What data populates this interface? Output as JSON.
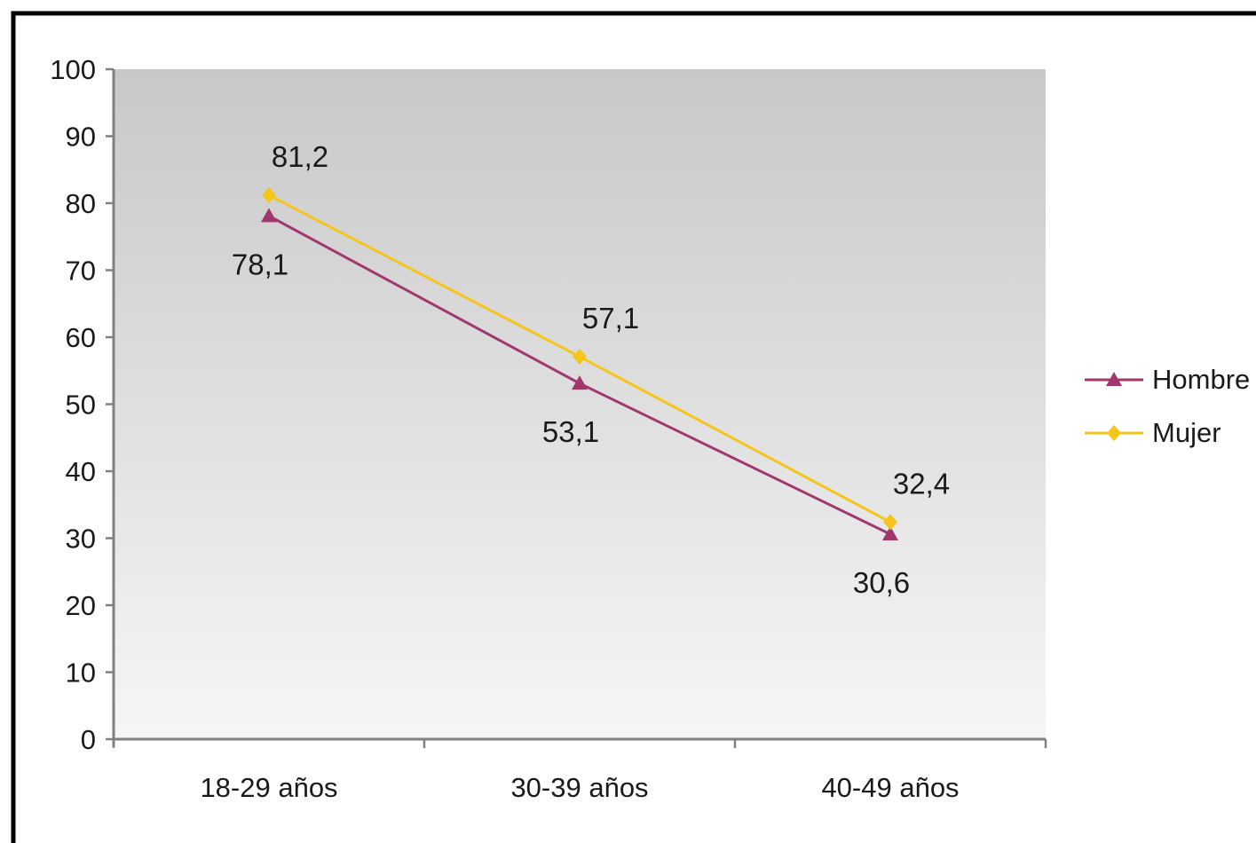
{
  "chart_data": {
    "type": "line",
    "categories": [
      "18-29 años",
      "30-39 años",
      "40-49 años"
    ],
    "series": [
      {
        "name": "Hombre",
        "values": [
          78.1,
          53.1,
          30.6
        ],
        "labels": [
          "78,1",
          "53,1",
          "30,6"
        ],
        "color": "#a0386e",
        "marker": "triangle"
      },
      {
        "name": "Mujer",
        "values": [
          81.2,
          57.1,
          32.4
        ],
        "labels": [
          "81,2",
          "57,1",
          "32,4"
        ],
        "color": "#f5c51b",
        "marker": "diamond"
      }
    ],
    "ylim": [
      0,
      100
    ],
    "yticks": [
      "0",
      "10",
      "20",
      "30",
      "40",
      "50",
      "60",
      "70",
      "80",
      "90",
      "100"
    ],
    "grid": false,
    "legend": "right",
    "title": "",
    "xlabel": "",
    "ylabel": ""
  }
}
